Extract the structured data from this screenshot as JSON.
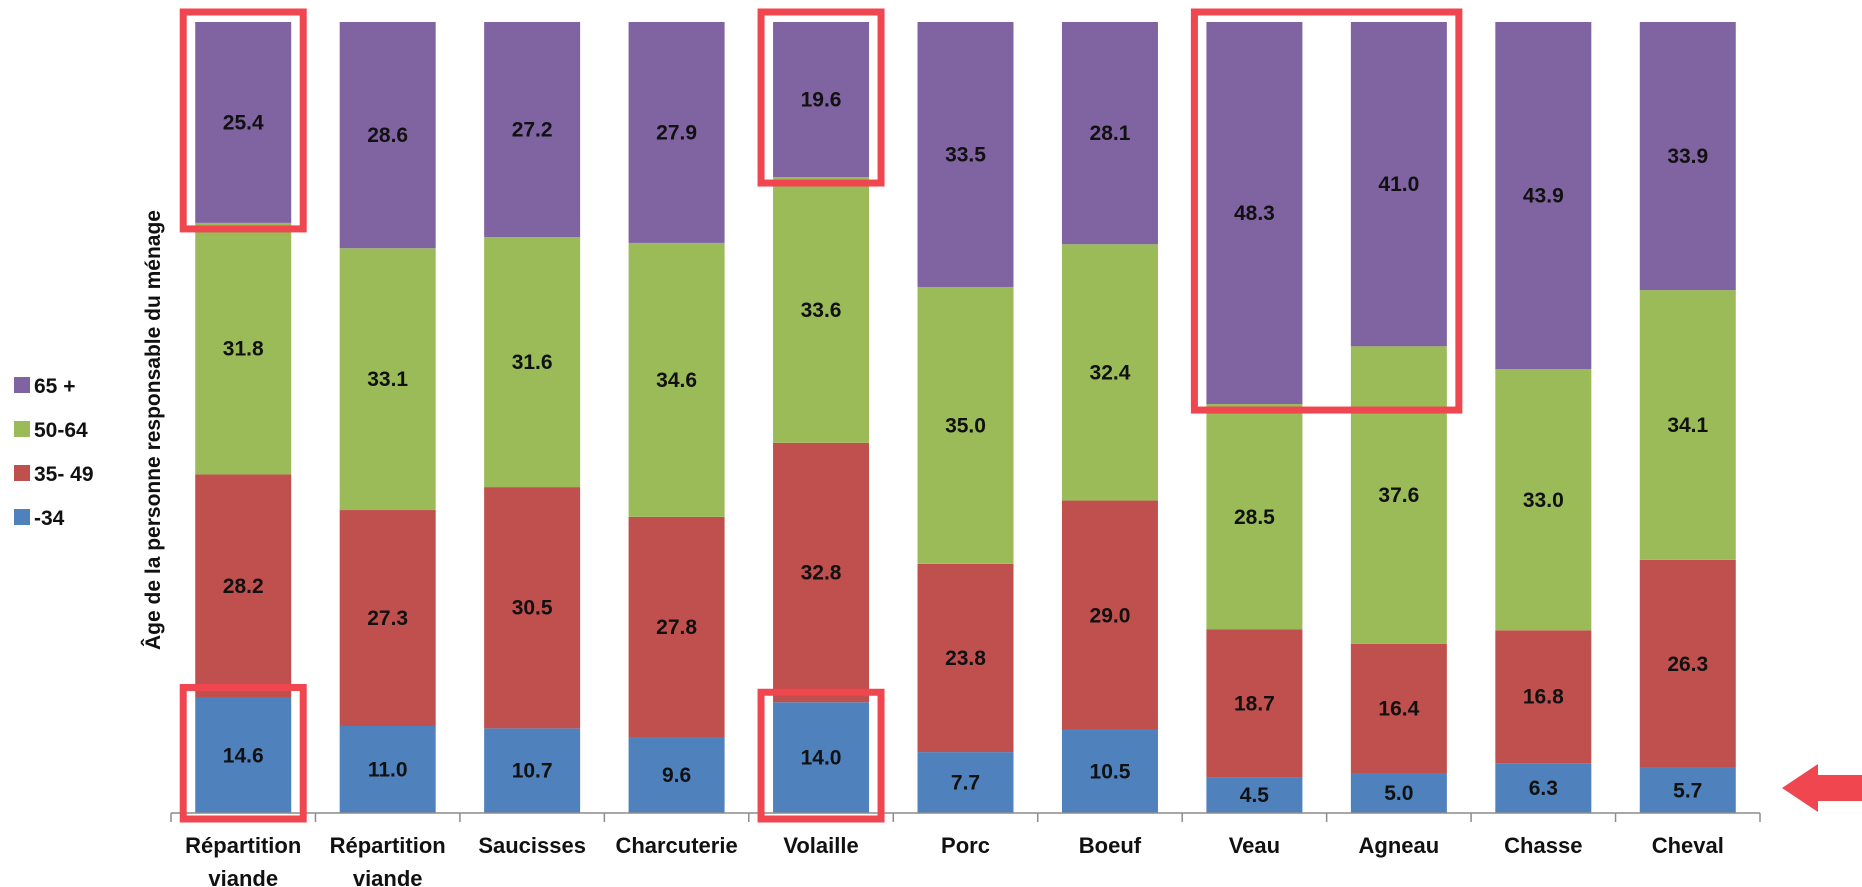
{
  "chart_data": {
    "type": "bar",
    "stacked": true,
    "normalized_percent": true,
    "ylabel": "Âge de la personne responsable du ménage",
    "categories": [
      [
        "Répartition",
        "viande"
      ],
      [
        "Répartition",
        "viande"
      ],
      [
        "Saucisses"
      ],
      [
        "Charcuterie"
      ],
      [
        "Volaille"
      ],
      [
        "Porc"
      ],
      [
        "Boeuf"
      ],
      [
        "Veau"
      ],
      [
        "Agneau"
      ],
      [
        "Chasse"
      ],
      [
        "Cheval"
      ]
    ],
    "series": [
      {
        "name": "-34",
        "color": "#4f81bd",
        "values": [
          14.6,
          11.0,
          10.7,
          9.6,
          14.0,
          7.7,
          10.5,
          4.5,
          5.0,
          6.3,
          5.7
        ],
        "labels": [
          "14.6",
          "11.0",
          "10.7",
          "9.6",
          "14.0",
          "7.7",
          "10.5",
          "4.5",
          "5.0",
          "6.3",
          "5.7"
        ]
      },
      {
        "name": "35- 49",
        "color": "#c0504d",
        "values": [
          28.2,
          27.3,
          30.5,
          27.8,
          32.8,
          23.8,
          29.0,
          18.7,
          16.4,
          16.8,
          26.3
        ],
        "labels": [
          "28.2",
          "27.3",
          "30.5",
          "27.8",
          "32.8",
          "23.8",
          "29.0",
          "18.7",
          "16.4",
          "16.8",
          "26.3"
        ]
      },
      {
        "name": "50-64",
        "color": "#9bbb59",
        "values": [
          31.8,
          33.1,
          31.6,
          34.6,
          33.6,
          35.0,
          32.4,
          28.5,
          37.6,
          33.0,
          34.1
        ],
        "labels": [
          "31.8",
          "33.1",
          "31.6",
          "34.6",
          "33.6",
          "35.0",
          "32.4",
          "28.5",
          "37.6",
          "33.0",
          "34.1"
        ]
      },
      {
        "name": "65 +",
        "color": "#8064a2",
        "values": [
          25.4,
          28.6,
          27.2,
          27.9,
          19.6,
          33.5,
          28.1,
          48.3,
          41.0,
          43.9,
          33.9
        ],
        "labels": [
          "25.4",
          "28.6",
          "27.2",
          "27.9",
          "19.6",
          "33.5",
          "28.1",
          "48.3",
          "41.0",
          "43.9",
          "33.9"
        ]
      }
    ],
    "legend": {
      "placement": "left",
      "order": [
        "65 +",
        "50-64",
        "35- 49",
        "-34"
      ]
    },
    "grid": false,
    "highlights": [
      {
        "category_index": 0,
        "series": "65 +",
        "color": "#f0464f"
      },
      {
        "category_index": 0,
        "series": "-34",
        "color": "#f0464f"
      },
      {
        "category_index": 4,
        "series": "65 +",
        "color": "#f0464f"
      },
      {
        "category_index": 4,
        "series": "-34",
        "color": "#f0464f"
      },
      {
        "category_index_start": 7,
        "category_index_end": 8,
        "series": "65 +",
        "color": "#f0464f"
      }
    ],
    "annotations": [
      {
        "type": "arrow",
        "direction": "left",
        "pointing_at": "x-axis baseline",
        "color": "#f0464f"
      }
    ]
  }
}
